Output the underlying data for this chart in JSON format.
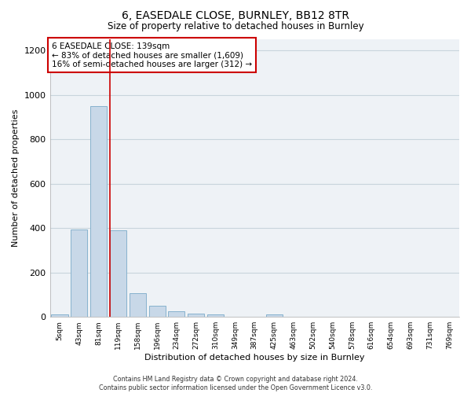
{
  "title": "6, EASEDALE CLOSE, BURNLEY, BB12 8TR",
  "subtitle": "Size of property relative to detached houses in Burnley",
  "xlabel": "Distribution of detached houses by size in Burnley",
  "ylabel": "Number of detached properties",
  "categories": [
    "5sqm",
    "43sqm",
    "81sqm",
    "119sqm",
    "158sqm",
    "196sqm",
    "234sqm",
    "272sqm",
    "310sqm",
    "349sqm",
    "387sqm",
    "425sqm",
    "463sqm",
    "502sqm",
    "540sqm",
    "578sqm",
    "616sqm",
    "654sqm",
    "693sqm",
    "731sqm",
    "769sqm"
  ],
  "values": [
    12,
    395,
    950,
    390,
    108,
    52,
    25,
    15,
    12,
    0,
    0,
    10,
    0,
    0,
    0,
    0,
    0,
    0,
    0,
    0,
    0
  ],
  "bar_color": "#c8d8e8",
  "bar_edge_color": "#7aaac8",
  "grid_color": "#c8d4dc",
  "bg_color": "#eef2f6",
  "annotation_text": "6 EASEDALE CLOSE: 139sqm\n← 83% of detached houses are smaller (1,609)\n16% of semi-detached houses are larger (312) →",
  "vline_x": 3,
  "vline_color": "#cc0000",
  "annotation_box_color": "#ffffff",
  "annotation_box_edge": "#cc0000",
  "footer": "Contains HM Land Registry data © Crown copyright and database right 2024.\nContains public sector information licensed under the Open Government Licence v3.0.",
  "ylim": [
    0,
    1250
  ],
  "yticks": [
    0,
    200,
    400,
    600,
    800,
    1000,
    1200
  ],
  "title_fontsize": 10,
  "subtitle_fontsize": 8.5
}
